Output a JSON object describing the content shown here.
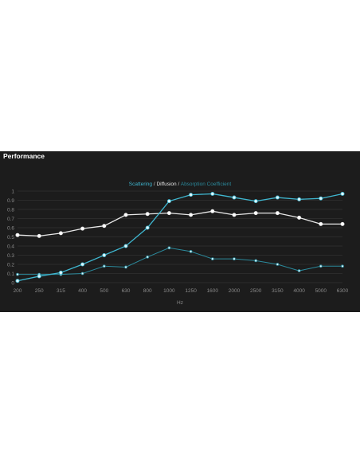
{
  "panel": {
    "title": "Performance"
  },
  "chart_data": {
    "type": "line",
    "title": "",
    "legend": {
      "items": [
        "Scattering",
        "Diffusion",
        "Absorption Coefficient"
      ],
      "separator": "/",
      "placement": "top-center"
    },
    "xlabel": "Hz",
    "ylabel": "",
    "categories": [
      "200",
      "250",
      "315",
      "400",
      "500",
      "630",
      "800",
      "1000",
      "1250",
      "1600",
      "2000",
      "2500",
      "3150",
      "4000",
      "5000",
      "6300"
    ],
    "yticks": [
      "0",
      "0.1",
      "0.2",
      "0.3",
      "0.4",
      "0.5",
      "0.6",
      "0.7",
      "0.8",
      "0.9",
      "1"
    ],
    "ylim": [
      0,
      1
    ],
    "grid": true,
    "series": [
      {
        "name": "Scattering",
        "color": "#3fb7d0",
        "values": [
          0.02,
          0.07,
          0.11,
          0.2,
          0.3,
          0.4,
          0.6,
          0.89,
          0.96,
          0.97,
          0.93,
          0.89,
          0.93,
          0.91,
          0.92,
          0.97
        ]
      },
      {
        "name": "Diffusion",
        "color": "#e8e8e8",
        "values": [
          0.52,
          0.51,
          0.54,
          0.59,
          0.62,
          0.74,
          0.75,
          0.76,
          0.74,
          0.78,
          0.74,
          0.76,
          0.76,
          0.71,
          0.64,
          0.64
        ]
      },
      {
        "name": "Absorption Coefficient",
        "color": "#2b8a9c",
        "values": [
          0.09,
          0.09,
          0.09,
          0.1,
          0.18,
          0.17,
          0.28,
          0.38,
          0.34,
          0.26,
          0.26,
          0.24,
          0.2,
          0.13,
          0.18,
          0.18
        ]
      }
    ]
  }
}
